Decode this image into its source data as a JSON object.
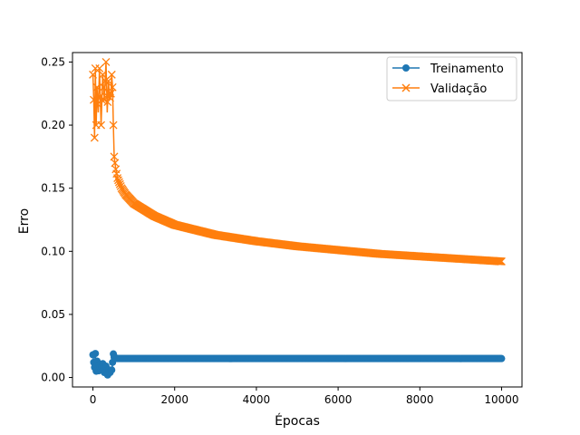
{
  "chart_data": {
    "type": "line",
    "title": "",
    "xlabel": "Épocas",
    "ylabel": "Erro",
    "xlim": [
      -500,
      10500
    ],
    "ylim": [
      -0.0075,
      0.2575
    ],
    "xticks": [
      0,
      2000,
      4000,
      6000,
      8000,
      10000
    ],
    "xtick_labels": [
      "0",
      "2000",
      "4000",
      "6000",
      "8000",
      "10000"
    ],
    "yticks": [
      0.0,
      0.05,
      0.1,
      0.15,
      0.2,
      0.25
    ],
    "ytick_labels": [
      "0.00",
      "0.05",
      "0.10",
      "0.15",
      "0.20",
      "0.25"
    ],
    "grid": false,
    "legend": "top-right",
    "series": [
      {
        "name": "Treinamento",
        "marker": "circle",
        "color": "#1f77b4",
        "x": [
          0,
          20,
          40,
          60,
          80,
          100,
          130,
          160,
          200,
          240,
          280,
          320,
          360,
          400,
          430,
          450,
          470,
          490,
          520,
          600,
          1000,
          2000,
          3000,
          4000,
          5000,
          6000,
          7000,
          8000,
          9000,
          10000
        ],
        "y": [
          0.018,
          0.012,
          0.008,
          0.019,
          0.005,
          0.013,
          0.003,
          0.01,
          0.006,
          0.011,
          0.004,
          0.009,
          0.002,
          0.006,
          0.003,
          0.008,
          0.004,
          0.02,
          0.016,
          0.015,
          0.015,
          0.015,
          0.015,
          0.015,
          0.015,
          0.015,
          0.015,
          0.015,
          0.015,
          0.015
        ]
      },
      {
        "name": "Validação",
        "marker": "x",
        "color": "#ff7f0e",
        "x": [
          0,
          20,
          40,
          60,
          80,
          100,
          130,
          160,
          200,
          240,
          280,
          320,
          350,
          380,
          410,
          440,
          460,
          480,
          500,
          520,
          560,
          600,
          700,
          800,
          1000,
          1500,
          2000,
          3000,
          4000,
          5000,
          6000,
          7000,
          8000,
          9000,
          10000
        ],
        "y": [
          0.24,
          0.22,
          0.19,
          0.245,
          0.2,
          0.23,
          0.21,
          0.245,
          0.2,
          0.24,
          0.22,
          0.25,
          0.21,
          0.235,
          0.22,
          0.225,
          0.24,
          0.23,
          0.2,
          0.175,
          0.165,
          0.158,
          0.15,
          0.145,
          0.138,
          0.128,
          0.121,
          0.113,
          0.108,
          0.104,
          0.101,
          0.098,
          0.096,
          0.094,
          0.092
        ]
      }
    ]
  }
}
